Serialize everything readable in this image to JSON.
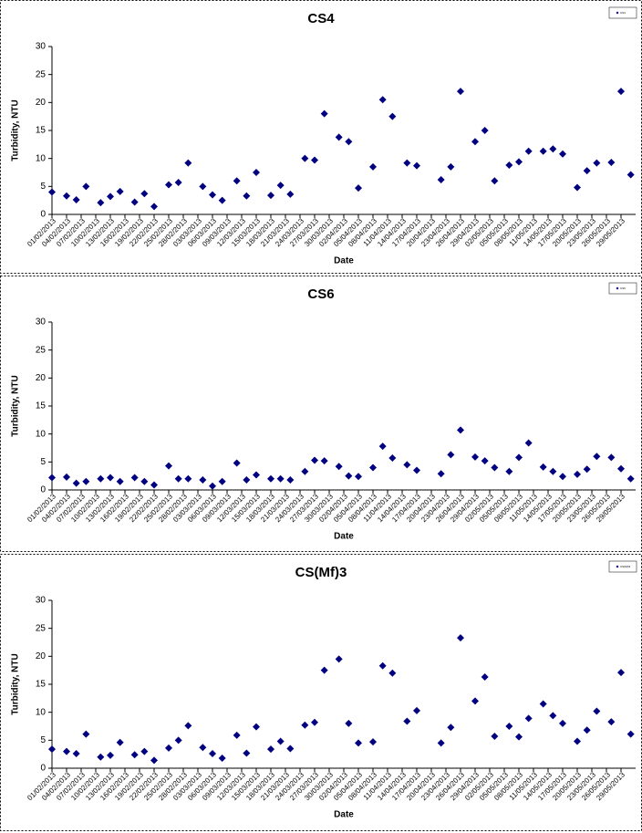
{
  "chart_data": [
    {
      "type": "scatter",
      "title": "CS4",
      "x_label": "Date",
      "y_label": "Turbidity, NTU",
      "color": "#000080",
      "xlim": [
        "01/02/2013",
        "01/06/2013"
      ],
      "ylim": [
        0,
        30
      ],
      "yticks": [
        0,
        5,
        10,
        15,
        20,
        25,
        30
      ],
      "xticks": [
        "01/02/2013",
        "04/02/2013",
        "07/02/2013",
        "10/02/2013",
        "13/02/2013",
        "16/02/2013",
        "19/02/2013",
        "22/02/2013",
        "25/02/2013",
        "28/02/2013",
        "03/03/2013",
        "06/03/2013",
        "09/03/2013",
        "12/03/2013",
        "15/03/2013",
        "18/03/2013",
        "21/03/2013",
        "24/03/2013",
        "27/03/2013",
        "30/03/2013",
        "02/04/2013",
        "05/04/2013",
        "08/04/2013",
        "11/04/2013",
        "14/04/2013",
        "17/04/2013",
        "20/04/2013",
        "23/04/2013",
        "26/04/2013",
        "29/04/2013",
        "02/05/2013",
        "05/05/2013",
        "08/05/2013",
        "11/05/2013",
        "14/05/2013",
        "17/05/2013",
        "20/05/2013",
        "23/05/2013",
        "26/05/2013",
        "29/05/2013"
      ],
      "series": [
        {
          "name": "CS4",
          "color": "#000080",
          "x": [
            "01/02/2013",
            "04/02/2013",
            "06/02/2013",
            "08/02/2013",
            "11/02/2013",
            "13/02/2013",
            "15/02/2013",
            "18/02/2013",
            "20/02/2013",
            "22/02/2013",
            "25/02/2013",
            "27/02/2013",
            "01/03/2013",
            "04/03/2013",
            "06/03/2013",
            "08/03/2013",
            "11/03/2013",
            "13/03/2013",
            "15/03/2013",
            "18/03/2013",
            "20/03/2013",
            "22/03/2013",
            "25/03/2013",
            "27/03/2013",
            "29/03/2013",
            "01/04/2013",
            "03/04/2013",
            "05/04/2013",
            "08/04/2013",
            "10/04/2013",
            "12/04/2013",
            "15/04/2013",
            "17/04/2013",
            "22/04/2013",
            "24/04/2013",
            "26/04/2013",
            "29/04/2013",
            "01/05/2013",
            "03/05/2013",
            "06/05/2013",
            "08/05/2013",
            "10/05/2013",
            "13/05/2013",
            "15/05/2013",
            "17/05/2013",
            "20/05/2013",
            "22/05/2013",
            "24/05/2013",
            "27/05/2013",
            "29/05/2013",
            "31/05/2013"
          ],
          "values": [
            4.0,
            3.3,
            2.6,
            5.0,
            2.1,
            3.2,
            4.1,
            2.2,
            3.7,
            1.4,
            5.3,
            5.7,
            9.2,
            5.0,
            3.5,
            2.5,
            6.0,
            3.3,
            7.5,
            3.4,
            5.2,
            3.6,
            10.0,
            9.7,
            18.0,
            13.8,
            13.0,
            4.7,
            8.5,
            20.5,
            17.5,
            9.2,
            8.7,
            6.2,
            8.5,
            22.0,
            13.0,
            15.0,
            6.0,
            8.8,
            9.4,
            11.3,
            11.3,
            11.7,
            10.8,
            4.8,
            7.8,
            9.2,
            9.3,
            22.0,
            7.1
          ]
        }
      ]
    },
    {
      "type": "scatter",
      "title": "CS6",
      "x_label": "Date",
      "y_label": "Turbidity, NTU",
      "color": "#000080",
      "xlim": [
        "01/02/2013",
        "01/06/2013"
      ],
      "ylim": [
        0,
        30
      ],
      "yticks": [
        0,
        5,
        10,
        15,
        20,
        25,
        30
      ],
      "xticks": [
        "01/02/2013",
        "04/02/2013",
        "07/02/2013",
        "10/02/2013",
        "13/02/2013",
        "16/02/2013",
        "19/02/2013",
        "22/02/2013",
        "25/02/2013",
        "28/02/2013",
        "03/03/2013",
        "06/03/2013",
        "09/03/2013",
        "12/03/2013",
        "15/03/2013",
        "18/03/2013",
        "21/03/2013",
        "24/03/2013",
        "27/03/2013",
        "30/03/2013",
        "02/04/2013",
        "05/04/2013",
        "08/04/2013",
        "11/04/2013",
        "14/04/2013",
        "17/04/2013",
        "20/04/2013",
        "23/04/2013",
        "26/04/2013",
        "29/04/2013",
        "02/05/2013",
        "05/05/2013",
        "08/05/2013",
        "11/05/2013",
        "14/05/2013",
        "17/05/2013",
        "20/05/2013",
        "23/05/2013",
        "26/05/2013",
        "29/05/2013"
      ],
      "series": [
        {
          "name": "CS6",
          "color": "#000080",
          "x": [
            "01/02/2013",
            "04/02/2013",
            "06/02/2013",
            "08/02/2013",
            "11/02/2013",
            "13/02/2013",
            "15/02/2013",
            "18/02/2013",
            "20/02/2013",
            "22/02/2013",
            "25/02/2013",
            "27/02/2013",
            "01/03/2013",
            "04/03/2013",
            "06/03/2013",
            "08/03/2013",
            "11/03/2013",
            "13/03/2013",
            "15/03/2013",
            "18/03/2013",
            "20/03/2013",
            "22/03/2013",
            "25/03/2013",
            "27/03/2013",
            "29/03/2013",
            "01/04/2013",
            "03/04/2013",
            "05/04/2013",
            "08/04/2013",
            "10/04/2013",
            "12/04/2013",
            "15/04/2013",
            "17/04/2013",
            "22/04/2013",
            "24/04/2013",
            "26/04/2013",
            "29/04/2013",
            "01/05/2013",
            "03/05/2013",
            "06/05/2013",
            "08/05/2013",
            "10/05/2013",
            "13/05/2013",
            "15/05/2013",
            "17/05/2013",
            "20/05/2013",
            "22/05/2013",
            "24/05/2013",
            "27/05/2013",
            "29/05/2013",
            "31/05/2013"
          ],
          "values": [
            2.2,
            2.3,
            1.2,
            1.5,
            2.0,
            2.2,
            1.5,
            2.2,
            1.5,
            0.9,
            4.3,
            2.0,
            2.0,
            1.8,
            0.7,
            1.5,
            4.8,
            1.8,
            2.7,
            2.0,
            2.0,
            1.8,
            3.3,
            5.3,
            5.2,
            4.2,
            2.5,
            2.4,
            4.0,
            7.8,
            5.7,
            4.5,
            3.5,
            2.9,
            6.3,
            10.7,
            5.9,
            5.2,
            4.0,
            3.3,
            5.8,
            8.4,
            4.1,
            3.3,
            2.4,
            2.8,
            3.7,
            6.0,
            5.8,
            3.8,
            2.0
          ]
        }
      ]
    },
    {
      "type": "scatter",
      "title": "CS(Mf)3",
      "x_label": "Date",
      "y_label": "Turbidity, NTU",
      "color": "#000080",
      "xlim": [
        "01/02/2013",
        "01/06/2013"
      ],
      "ylim": [
        0,
        30
      ],
      "yticks": [
        0,
        5,
        10,
        15,
        20,
        25,
        30
      ],
      "xticks": [
        "01/02/2013",
        "04/02/2013",
        "07/02/2013",
        "10/02/2013",
        "13/02/2013",
        "16/02/2013",
        "19/02/2013",
        "22/02/2013",
        "25/02/2013",
        "28/02/2013",
        "03/03/2013",
        "06/03/2013",
        "09/03/2013",
        "12/03/2013",
        "15/03/2013",
        "18/03/2013",
        "21/03/2013",
        "24/03/2013",
        "27/03/2013",
        "30/03/2013",
        "02/04/2013",
        "05/04/2013",
        "08/04/2013",
        "11/04/2013",
        "14/04/2013",
        "17/04/2013",
        "20/04/2013",
        "23/04/2013",
        "26/04/2013",
        "29/04/2013",
        "02/05/2013",
        "05/05/2013",
        "08/05/2013",
        "11/05/2013",
        "14/05/2013",
        "17/05/2013",
        "20/05/2013",
        "23/05/2013",
        "26/05/2013",
        "29/05/2013"
      ],
      "series": [
        {
          "name": "CS(Mf)3",
          "color": "#000080",
          "x": [
            "01/02/2013",
            "04/02/2013",
            "06/02/2013",
            "08/02/2013",
            "11/02/2013",
            "13/02/2013",
            "15/02/2013",
            "18/02/2013",
            "20/02/2013",
            "22/02/2013",
            "25/02/2013",
            "27/02/2013",
            "01/03/2013",
            "04/03/2013",
            "06/03/2013",
            "08/03/2013",
            "11/03/2013",
            "13/03/2013",
            "15/03/2013",
            "18/03/2013",
            "20/03/2013",
            "22/03/2013",
            "25/03/2013",
            "27/03/2013",
            "29/03/2013",
            "01/04/2013",
            "03/04/2013",
            "05/04/2013",
            "08/04/2013",
            "10/04/2013",
            "12/04/2013",
            "15/04/2013",
            "17/04/2013",
            "22/04/2013",
            "24/04/2013",
            "26/04/2013",
            "29/04/2013",
            "01/05/2013",
            "03/05/2013",
            "06/05/2013",
            "08/05/2013",
            "10/05/2013",
            "13/05/2013",
            "15/05/2013",
            "17/05/2013",
            "20/05/2013",
            "22/05/2013",
            "24/05/2013",
            "27/05/2013",
            "29/05/2013",
            "31/05/2013"
          ],
          "values": [
            3.4,
            3.0,
            2.6,
            6.1,
            2.0,
            2.3,
            4.6,
            2.4,
            3.0,
            1.4,
            3.6,
            5.0,
            7.6,
            3.7,
            2.6,
            1.8,
            5.9,
            2.7,
            7.4,
            3.4,
            4.8,
            3.5,
            7.7,
            8.2,
            17.5,
            19.5,
            8.0,
            4.5,
            4.7,
            18.3,
            17.0,
            8.4,
            10.3,
            4.5,
            7.3,
            23.3,
            12.0,
            16.3,
            5.7,
            7.5,
            5.6,
            8.9,
            11.5,
            9.4,
            8.0,
            4.8,
            6.8,
            10.2,
            8.3,
            17.1,
            6.1
          ]
        }
      ]
    }
  ]
}
